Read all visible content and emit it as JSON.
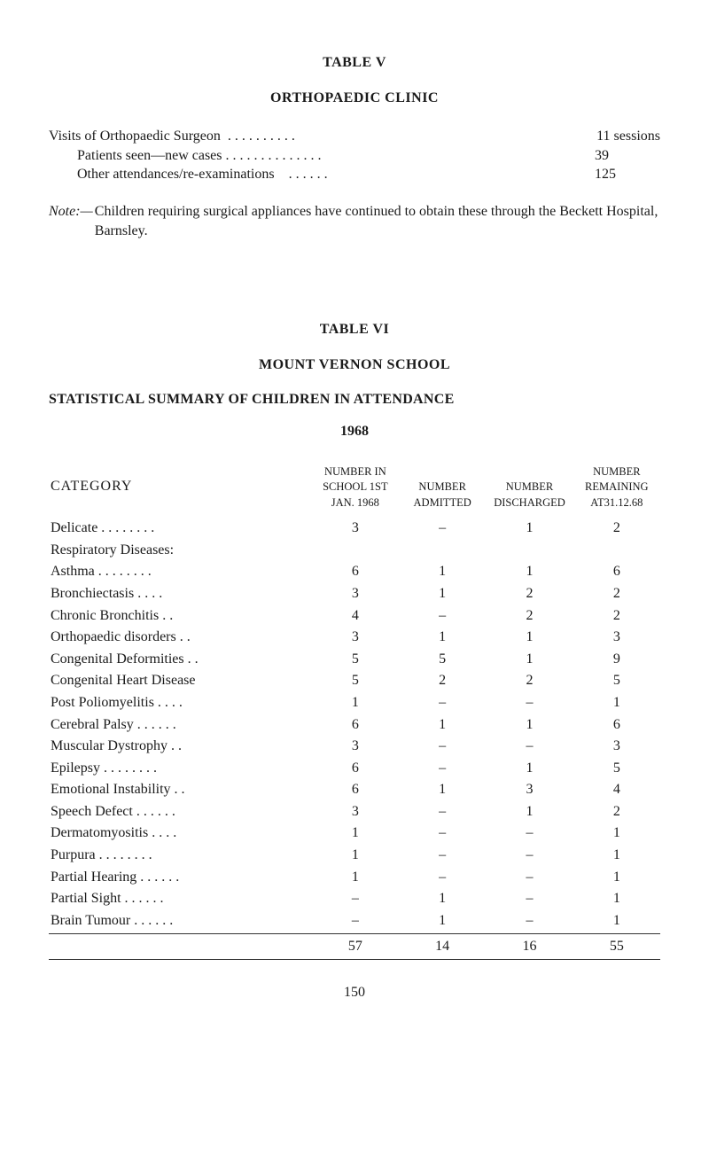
{
  "table5": {
    "label": "TABLE  V",
    "title": "ORTHOPAEDIC  CLINIC",
    "visits_label": "Visits of Orthopaedic Surgeon",
    "visits_dots": ". .    . .    . .    . .    . .",
    "visits_value": "11 sessions",
    "patients_label": "Patients seen—new cases",
    "patients_dots": ". .    . .    . .    . .    . .    . .    . .",
    "patients_value": "39",
    "other_label": "Other attendances/re-examinations",
    "other_dots": ". .    . .    . .",
    "other_value": "125",
    "note_label": "Note:—",
    "note_text": "Children requiring surgical appliances have continued to obtain these through the Beckett Hospital, Barnsley."
  },
  "table6": {
    "label": "TABLE  VI",
    "subtitle": "MOUNT  VERNON  SCHOOL",
    "heading": "STATISTICAL  SUMMARY  OF  CHILDREN  IN  ATTENDANCE",
    "year": "1968",
    "col_headers": {
      "category": "CATEGORY",
      "col1_l1": "NUMBER IN",
      "col1_l2": "SCHOOL 1ST",
      "col1_l3": "JAN. 1968",
      "col2_l1": "",
      "col2_l2": "NUMBER",
      "col2_l3": "ADMITTED",
      "col3_l1": "",
      "col3_l2": "NUMBER",
      "col3_l3": "DISCHARGED",
      "col4_l1": "NUMBER",
      "col4_l2": "REMAINING",
      "col4_l3": "AT31.12.68"
    },
    "rows": [
      {
        "label": "Delicate    . .   . .   . .   . .",
        "indent": false,
        "v": [
          "3",
          "–",
          "1",
          "2"
        ]
      },
      {
        "label": "Respiratory Diseases:",
        "indent": false,
        "v": [
          "",
          "",
          "",
          ""
        ]
      },
      {
        "label": "Asthma . .   . .   . .   . .",
        "indent": true,
        "v": [
          "6",
          "1",
          "1",
          "6"
        ]
      },
      {
        "label": "Bronchiectasis     . .   . .",
        "indent": true,
        "v": [
          "3",
          "1",
          "2",
          "2"
        ]
      },
      {
        "label": "Chronic Bronchitis   . .",
        "indent": true,
        "v": [
          "4",
          "–",
          "2",
          "2"
        ]
      },
      {
        "label": "Orthopaedic disorders   . .",
        "indent": false,
        "v": [
          "3",
          "1",
          "1",
          "3"
        ]
      },
      {
        "label": "Congenital Deformities  . .",
        "indent": false,
        "v": [
          "5",
          "5",
          "1",
          "9"
        ]
      },
      {
        "label": "Congenital Heart Disease",
        "indent": false,
        "v": [
          "5",
          "2",
          "2",
          "5"
        ]
      },
      {
        "label": "Post Poliomyelitis    . .   . .",
        "indent": false,
        "v": [
          "1",
          "–",
          "–",
          "1"
        ]
      },
      {
        "label": "Cerebral Palsy  . .   . .   . .",
        "indent": false,
        "v": [
          "6",
          "1",
          "1",
          "6"
        ]
      },
      {
        "label": "Muscular Dystrophy    . .",
        "indent": false,
        "v": [
          "3",
          "–",
          "–",
          "3"
        ]
      },
      {
        "label": "Epilepsy    . .   . .   . .   . .",
        "indent": false,
        "v": [
          "6",
          "–",
          "1",
          "5"
        ]
      },
      {
        "label": "Emotional Instability   . .",
        "indent": false,
        "v": [
          "6",
          "1",
          "3",
          "4"
        ]
      },
      {
        "label": "Speech Defect   . .   . .   . .",
        "indent": false,
        "v": [
          "3",
          "–",
          "1",
          "2"
        ]
      },
      {
        "label": "Dermatomyositis    . .   . .",
        "indent": false,
        "v": [
          "1",
          "–",
          "–",
          "1"
        ]
      },
      {
        "label": "Purpura     . .   . .   . .   . .",
        "indent": false,
        "v": [
          "1",
          "–",
          "–",
          "1"
        ]
      },
      {
        "label": "Partial Hearing . .   . .   . .",
        "indent": false,
        "v": [
          "1",
          "–",
          "–",
          "1"
        ]
      },
      {
        "label": "Partial Sight    . .   . .   . .",
        "indent": false,
        "v": [
          "–",
          "1",
          "–",
          "1"
        ]
      },
      {
        "label": "Brain Tumour  . .   . .   . .",
        "indent": false,
        "v": [
          "–",
          "1",
          "–",
          "1"
        ]
      }
    ],
    "totals": [
      "57",
      "14",
      "16",
      "55"
    ]
  },
  "page_number": "150"
}
